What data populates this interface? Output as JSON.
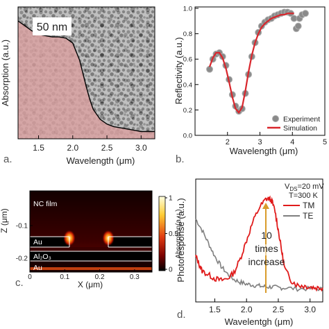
{
  "chart_data": [
    {
      "panel": "a.",
      "type": "area",
      "xlabel": "Wavelength (μm)",
      "ylabel": "Absorption (a.u.)",
      "xlim": [
        1.2,
        3.2
      ],
      "xticks": [
        "1.5",
        "2.0",
        "2.5",
        "3.0"
      ],
      "inset_label": "50 nm",
      "x": [
        1.2,
        1.3,
        1.4,
        1.5,
        1.6,
        1.7,
        1.8,
        1.9,
        2.0,
        2.1,
        2.2,
        2.25,
        2.3,
        2.4,
        2.5,
        2.6,
        2.7,
        2.8,
        2.9,
        3.0,
        3.1,
        3.2
      ],
      "y": [
        0.92,
        0.88,
        0.84,
        0.81,
        0.8,
        0.79,
        0.79,
        0.78,
        0.74,
        0.6,
        0.38,
        0.28,
        0.2,
        0.12,
        0.08,
        0.06,
        0.05,
        0.04,
        0.03,
        0.02,
        0.02,
        0.02
      ],
      "fill_color": "#d9a0a0"
    },
    {
      "panel": "b.",
      "type": "line",
      "xlabel": "Wavelength (μm)",
      "ylabel": "Reflectivity (a.u.)",
      "xlim": [
        1,
        5
      ],
      "ylim": [
        0,
        1
      ],
      "xticks": [
        "2",
        "3",
        "4",
        "5"
      ],
      "yticks": [
        "0.0",
        "0.2",
        "0.4",
        "0.6",
        "0.8",
        "1.0"
      ],
      "legend_position": "bottom-right",
      "series": [
        {
          "name": "Experiment",
          "marker": "circle",
          "color": "#8a8a8a",
          "x": [
            1.45,
            1.55,
            1.65,
            1.75,
            1.85,
            1.95,
            2.05,
            2.15,
            2.25,
            2.35,
            2.45,
            2.55,
            2.65,
            2.75,
            2.85,
            2.95,
            3.05,
            3.15,
            3.25,
            3.35,
            3.45,
            3.55,
            3.65,
            3.75,
            3.85,
            3.95,
            4.05,
            4.12,
            4.18,
            4.22,
            4.3,
            4.4
          ],
          "y": [
            0.52,
            0.6,
            0.64,
            0.65,
            0.62,
            0.55,
            0.44,
            0.32,
            0.23,
            0.19,
            0.21,
            0.33,
            0.48,
            0.62,
            0.73,
            0.81,
            0.86,
            0.89,
            0.91,
            0.92,
            0.94,
            0.95,
            0.96,
            0.97,
            0.97,
            0.96,
            0.92,
            0.84,
            0.86,
            0.92,
            0.95,
            0.96
          ]
        },
        {
          "name": "Simulation",
          "marker": "line",
          "color": "#d9262c",
          "x": [
            1.45,
            1.55,
            1.65,
            1.75,
            1.85,
            1.95,
            2.05,
            2.15,
            2.25,
            2.35,
            2.45,
            2.55,
            2.65,
            2.75,
            2.85,
            2.95,
            3.05,
            3.15,
            3.25,
            3.35,
            3.45,
            3.55,
            3.65,
            3.75,
            3.85,
            3.95,
            4.05
          ],
          "y": [
            0.54,
            0.61,
            0.65,
            0.65,
            0.61,
            0.53,
            0.42,
            0.3,
            0.21,
            0.18,
            0.22,
            0.35,
            0.5,
            0.63,
            0.73,
            0.8,
            0.85,
            0.88,
            0.9,
            0.92,
            0.93,
            0.94,
            0.95,
            0.95,
            0.96,
            0.96,
            0.96
          ]
        }
      ]
    },
    {
      "panel": "c.",
      "type": "heatmap",
      "xlabel": "X (μm)",
      "ylabel": "Z (μm)",
      "xticks": [
        "0",
        "0.1",
        "0.2",
        "0.3"
      ],
      "yticks": [
        "-0.1",
        "-0.2"
      ],
      "colorbar_label": "Absorption(a.u.)",
      "colorbar_ticks": [
        "1",
        "0.5",
        "0"
      ],
      "region_labels": [
        "NC film",
        "Au",
        "Al₂O₃",
        "Au"
      ]
    },
    {
      "panel": "d.",
      "type": "line",
      "xlabel": "Wavelentgh (μm)",
      "ylabel": "Photoresponse (a.u.)",
      "xlim": [
        1.2,
        3.2
      ],
      "xticks": [
        "1.5",
        "2.0",
        "2.5",
        "3.0"
      ],
      "conditions": [
        "V",
        "DS",
        "=20 mV",
        "T=300 K"
      ],
      "annotation": [
        "10",
        "times",
        "increase"
      ],
      "legend_position": "top-right",
      "series": [
        {
          "name": "TM",
          "color": "#e01b1b",
          "x": [
            1.2,
            1.25,
            1.3,
            1.4,
            1.5,
            1.6,
            1.7,
            1.8,
            1.9,
            2.0,
            2.1,
            2.2,
            2.3,
            2.35,
            2.4,
            2.45,
            2.5,
            2.55,
            2.6,
            2.7,
            2.8,
            2.9,
            3.0,
            3.1,
            3.2
          ],
          "y": [
            0.38,
            0.3,
            0.22,
            0.18,
            0.14,
            0.12,
            0.14,
            0.2,
            0.35,
            0.55,
            0.75,
            0.9,
            0.99,
            1.0,
            0.97,
            0.86,
            0.66,
            0.45,
            0.25,
            0.12,
            0.07,
            0.06,
            0.05,
            0.04,
            0.04
          ]
        },
        {
          "name": "TE",
          "color": "#7f7f7f",
          "x": [
            1.2,
            1.3,
            1.4,
            1.5,
            1.6,
            1.7,
            1.8,
            1.9,
            2.0,
            2.1,
            2.2,
            2.3,
            2.4,
            2.5,
            2.6,
            2.8,
            3.0,
            3.2
          ],
          "y": [
            0.78,
            0.66,
            0.52,
            0.38,
            0.27,
            0.19,
            0.13,
            0.1,
            0.08,
            0.07,
            0.06,
            0.05,
            0.05,
            0.04,
            0.04,
            0.03,
            0.03,
            0.03
          ]
        }
      ]
    }
  ]
}
